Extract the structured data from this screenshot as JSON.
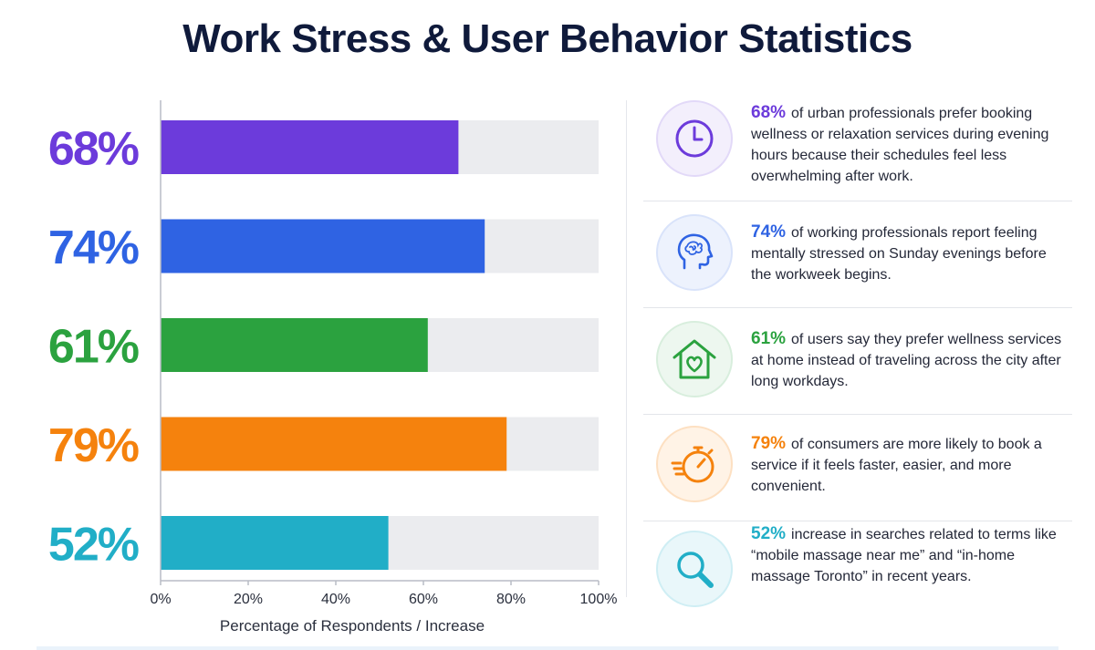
{
  "title": "Work Stress & User Behavior Statistics",
  "chart_data": {
    "type": "bar",
    "orientation": "horizontal",
    "categories": [
      "68%",
      "74%",
      "61%",
      "79%",
      "52%"
    ],
    "values": [
      68,
      74,
      61,
      79,
      52
    ],
    "colors": [
      "#6c3bdb",
      "#2f63e3",
      "#2ba23f",
      "#f5820d",
      "#21aec7"
    ],
    "track_color": "#ebecef",
    "xlim": [
      0,
      100
    ],
    "x_ticks": [
      "0%",
      "20%",
      "40%",
      "60%",
      "80%",
      "100%"
    ],
    "xlabel": "Percentage of Respondents / Increase",
    "grid": false
  },
  "stats": [
    {
      "pct": "68%",
      "color": "#6c3bdb",
      "bg": "#f3effc",
      "icon": "clock-icon",
      "text": "of urban professionals prefer booking wellness or relaxation services during evening hours because their schedules feel less overwhelming after work."
    },
    {
      "pct": "74%",
      "color": "#2f63e3",
      "bg": "#edf2fd",
      "icon": "stressed-head-icon",
      "text": "of working professionals report feeling mentally stressed on Sunday evenings before the workweek begins."
    },
    {
      "pct": "61%",
      "color": "#2ba23f",
      "bg": "#edf7ef",
      "icon": "home-heart-icon",
      "text": "of users say they prefer wellness services at home instead of traveling across the city after long workdays."
    },
    {
      "pct": "79%",
      "color": "#f5820d",
      "bg": "#fff3e6",
      "icon": "fast-stopwatch-icon",
      "text": "of consumers are more likely to book a service if it feels faster, easier, and more convenient."
    },
    {
      "pct": "52%",
      "color": "#21aec7",
      "bg": "#e9f7fa",
      "icon": "magnifier-icon",
      "text": "increase in searches related to terms like “mobile massage near me” and “in-home massage Toronto” in recent years."
    }
  ]
}
